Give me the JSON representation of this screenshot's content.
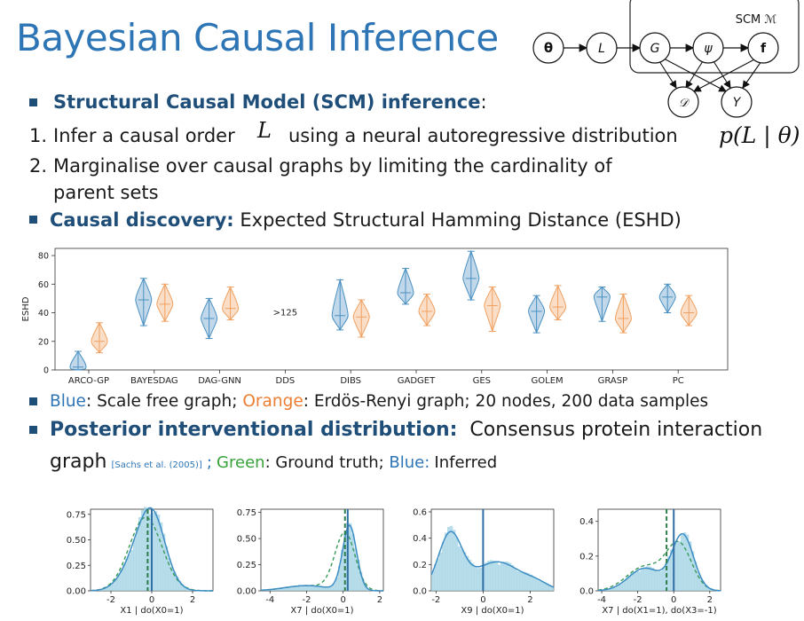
{
  "title": "Bayesian Causal Inference",
  "scm": {
    "label": "SCM ℳ",
    "nodes": {
      "theta": "θ",
      "L": "L",
      "G": "G",
      "psi": "ψ",
      "f": "f",
      "D": "𝒟",
      "Y": "Y"
    }
  },
  "section1": {
    "heading": "Structural Causal Model (SCM) inference",
    "colon": ":",
    "item1_num": "1.",
    "item1_a": "Infer a causal order",
    "item1_math": "L",
    "item1_b": "using a neural autoregressive distribution",
    "item1_formula": "p(L | θ)",
    "item2_num": "2.",
    "item2_line1": "Marginalise over causal graphs by limiting the cardinality of",
    "item2_line2": "parent sets"
  },
  "section2": {
    "heading": "Causal discovery:",
    "text": "Expected Structural Hamming Distance (ESHD)"
  },
  "colors": {
    "blue": "#4a90c2",
    "orange": "#f0a060",
    "green": "#3a9a5a",
    "accent": "#1f4e79"
  },
  "chart_data": [
    {
      "type": "violin",
      "ylabel": "ESHD",
      "ylim": [
        0,
        85
      ],
      "yticks": [
        0,
        20,
        40,
        60,
        80
      ],
      "categories": [
        "ARCO-GP",
        "BAYESDAG",
        "DAG-GNN",
        "DDS",
        "DIBS",
        "GADGET",
        "GES",
        "GOLEM",
        "GRASP",
        "PC"
      ],
      "annotation": ">125",
      "series": [
        {
          "median": [
            2,
            49,
            36,
            null,
            38,
            54,
            64,
            41,
            51,
            51
          ],
          "min": [
            0,
            31,
            22,
            null,
            28,
            46,
            49,
            26,
            34,
            40
          ],
          "max": [
            13,
            64,
            50,
            null,
            63,
            71,
            83,
            52,
            58,
            60
          ]
        },
        {
          "median": [
            20,
            46,
            43,
            null,
            37,
            41,
            45,
            44,
            36,
            40
          ],
          "min": [
            12,
            34,
            35,
            null,
            23,
            31,
            27,
            35,
            26,
            31
          ],
          "max": [
            33,
            60,
            58,
            null,
            49,
            53,
            58,
            59,
            53,
            52
          ]
        }
      ]
    },
    {
      "type": "area",
      "xlabel": "X1 | do(X0=1)",
      "xlim": [
        -3,
        3
      ],
      "ylim": [
        0,
        0.8
      ],
      "xticks": [
        "-2",
        "0",
        "2"
      ],
      "yticks": [
        "0.00",
        "0.25",
        "0.50",
        "0.75"
      ],
      "green_line": -0.2,
      "blue_line": 0.0
    },
    {
      "type": "area",
      "xlabel": "X7 | do(X0=1)",
      "xlim": [
        -4.5,
        2.2
      ],
      "ylim": [
        0,
        0.78
      ],
      "xticks": [
        "-4",
        "-2",
        "0",
        "2"
      ],
      "yticks": [
        "0.00",
        "0.25",
        "0.50",
        "0.75"
      ],
      "green_line": 0.1,
      "blue_line": 0.25
    },
    {
      "type": "area",
      "xlabel": "X9 | do(X0=1)",
      "xlim": [
        -2.2,
        3
      ],
      "ylim": [
        0,
        0.62
      ],
      "xticks": [
        "-2",
        "0",
        "2"
      ],
      "yticks": [
        "0.0",
        "0.2",
        "0.4",
        "0.6"
      ],
      "green_line": null,
      "blue_line": 0.0
    },
    {
      "type": "area",
      "xlabel": "X7 | do(X1=1), do(X3=-1)",
      "xlim": [
        -4.2,
        2.6
      ],
      "ylim": [
        0,
        0.47
      ],
      "xticks": [
        "-4",
        "-2",
        "0",
        "2"
      ],
      "yticks": [
        "0.0",
        "0.2",
        "0.4"
      ],
      "green_line": -0.4,
      "blue_line": 0.0
    }
  ],
  "legend_line": {
    "blue": "Blue",
    "blue_text": ": Scale free graph; ",
    "orange": "Orange",
    "orange_text": ": Erdös-Renyi graph; 20 nodes, 200 data samples"
  },
  "section3": {
    "heading": "Posterior interventional distribution:",
    "text": "Consensus protein interaction",
    "line2": "graph",
    "cite": "[Sachs et al. (2005)]",
    "sep": ";",
    "green": "Green",
    "green_text": ": Ground truth; ",
    "blue": "Blue:",
    "blue_text": "Inferred"
  }
}
